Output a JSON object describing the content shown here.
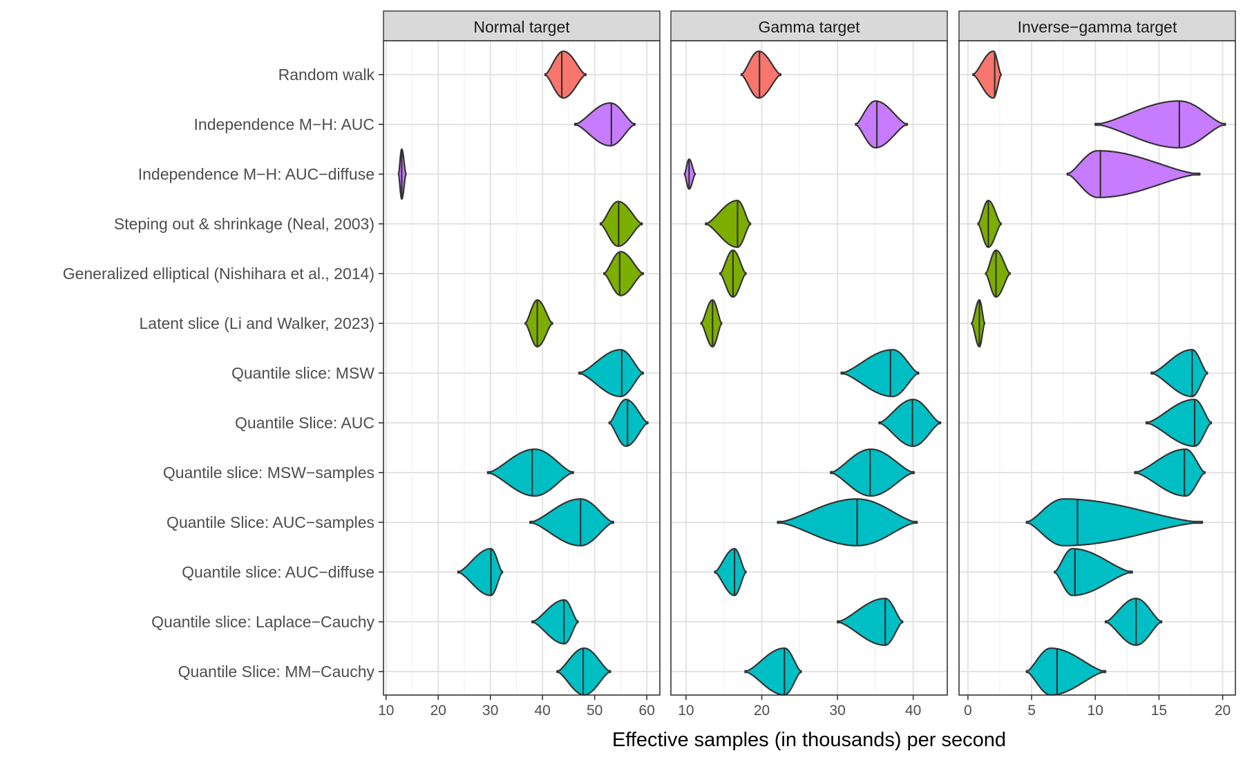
{
  "chart_data": {
    "type": "violin",
    "title": "",
    "xlabel": "Effective samples (in thousands) per second",
    "ylabel": "",
    "grid": true,
    "legend": "none",
    "categories": [
      "Random walk",
      "Independence M−H: AUC",
      "Independence M−H: AUC−diffuse",
      "Steping out & shrinkage (Neal, 2003)",
      "Generalized elliptical (Nishihara et al., 2014)",
      "Latent slice (Li and Walker, 2023)",
      "Quantile slice: MSW",
      "Quantile Slice: AUC",
      "Quantile slice: MSW−samples",
      "Quantile Slice: AUC−samples",
      "Quantile slice: AUC−diffuse",
      "Quantile slice: Laplace−Cauchy",
      "Quantile Slice: MM−Cauchy"
    ],
    "group_colors": [
      "#F8766D",
      "#C77CFF",
      "#C77CFF",
      "#7CAE00",
      "#7CAE00",
      "#7CAE00",
      "#00BFC4",
      "#00BFC4",
      "#00BFC4",
      "#00BFC4",
      "#00BFC4",
      "#00BFC4",
      "#00BFC4"
    ],
    "panels": [
      {
        "strip": "Normal target",
        "xlim": [
          9.5,
          62.5
        ],
        "xticks": [
          "10",
          "20",
          "30",
          "40",
          "50",
          "60"
        ],
        "xtick_values": [
          10,
          20,
          30,
          40,
          50,
          60
        ],
        "violins": [
          {
            "min": 40.5,
            "max": 48.3,
            "median": 43.7,
            "peak": 44,
            "w": 0.47
          },
          {
            "min": 46.2,
            "max": 57.7,
            "median": 53.2,
            "peak": 53,
            "w": 0.43
          },
          {
            "min": 12.4,
            "max": 13.8,
            "median": 13.0,
            "peak": 13,
            "w": 0.5
          },
          {
            "min": 51.1,
            "max": 59.1,
            "median": 54.6,
            "peak": 54.5,
            "w": 0.45
          },
          {
            "min": 51.8,
            "max": 59.3,
            "median": 54.8,
            "peak": 55,
            "w": 0.44
          },
          {
            "min": 36.7,
            "max": 41.9,
            "median": 39.0,
            "peak": 39,
            "w": 0.47
          },
          {
            "min": 47.0,
            "max": 59.3,
            "median": 55.2,
            "peak": 55,
            "w": 0.47
          },
          {
            "min": 52.8,
            "max": 60.2,
            "median": 56.3,
            "peak": 56,
            "w": 0.47
          },
          {
            "min": 29.5,
            "max": 45.9,
            "median": 38.0,
            "peak": 38.5,
            "w": 0.47
          },
          {
            "min": 37.6,
            "max": 53.6,
            "median": 47.3,
            "peak": 47.3,
            "w": 0.47
          },
          {
            "min": 23.8,
            "max": 32.3,
            "median": 30.1,
            "peak": 30.1,
            "w": 0.47
          },
          {
            "min": 38.0,
            "max": 46.8,
            "median": 44.1,
            "peak": 44.2,
            "w": 0.44
          },
          {
            "min": 42.8,
            "max": 53.0,
            "median": 47.8,
            "peak": 48,
            "w": 0.47
          }
        ]
      },
      {
        "strip": "Gamma target",
        "xlim": [
          8.0,
          44.5
        ],
        "xticks": [
          "10",
          "20",
          "30",
          "40"
        ],
        "xtick_values": [
          10,
          20,
          30,
          40
        ],
        "violins": [
          {
            "min": 17.3,
            "max": 22.5,
            "median": 19.7,
            "peak": 19.6,
            "w": 0.47
          },
          {
            "min": 32.4,
            "max": 39.2,
            "median": 35.2,
            "peak": 35,
            "w": 0.47
          },
          {
            "min": 9.8,
            "max": 11.2,
            "median": 10.4,
            "peak": 10.4,
            "w": 0.3
          },
          {
            "min": 12.6,
            "max": 18.5,
            "median": 16.8,
            "peak": 16.8,
            "w": 0.47
          },
          {
            "min": 14.5,
            "max": 17.9,
            "median": 16.2,
            "peak": 16.2,
            "w": 0.47
          },
          {
            "min": 12.0,
            "max": 14.7,
            "median": 13.5,
            "peak": 13.5,
            "w": 0.47
          },
          {
            "min": 30.5,
            "max": 40.7,
            "median": 37.0,
            "peak": 37.3,
            "w": 0.47
          },
          {
            "min": 35.5,
            "max": 43.6,
            "median": 39.9,
            "peak": 40,
            "w": 0.47
          },
          {
            "min": 29.1,
            "max": 40.1,
            "median": 34.3,
            "peak": 34.4,
            "w": 0.47
          },
          {
            "min": 22.1,
            "max": 40.5,
            "median": 32.6,
            "peak": 32.6,
            "w": 0.47
          },
          {
            "min": 13.8,
            "max": 17.9,
            "median": 16.4,
            "peak": 16.4,
            "w": 0.47
          },
          {
            "min": 30.0,
            "max": 38.6,
            "median": 36.3,
            "peak": 36.3,
            "w": 0.47
          },
          {
            "min": 17.8,
            "max": 25.2,
            "median": 23.0,
            "peak": 23,
            "w": 0.47
          }
        ]
      },
      {
        "strip": "Inverse−gamma target",
        "xlim": [
          -0.7,
          21.0
        ],
        "xticks": [
          "0",
          "5",
          "10",
          "15",
          "20"
        ],
        "xtick_values": [
          0,
          5,
          10,
          15,
          20
        ],
        "violins": [
          {
            "min": 0.4,
            "max": 2.6,
            "median": 2.1,
            "peak": 2,
            "w": 0.47
          },
          {
            "min": 10.0,
            "max": 20.2,
            "median": 16.6,
            "peak": 16.6,
            "w": 0.47
          },
          {
            "min": 7.8,
            "max": 18.2,
            "median": 10.4,
            "peak": 10.2,
            "w": 0.47
          },
          {
            "min": 0.8,
            "max": 2.6,
            "median": 1.6,
            "peak": 1.6,
            "w": 0.47
          },
          {
            "min": 1.4,
            "max": 3.3,
            "median": 2.2,
            "peak": 2.2,
            "w": 0.47
          },
          {
            "min": 0.3,
            "max": 1.3,
            "median": 0.9,
            "peak": 0.9,
            "w": 0.47
          },
          {
            "min": 14.4,
            "max": 18.8,
            "median": 17.6,
            "peak": 17.6,
            "w": 0.47
          },
          {
            "min": 14.0,
            "max": 19.1,
            "median": 17.8,
            "peak": 17.8,
            "w": 0.47
          },
          {
            "min": 13.1,
            "max": 18.6,
            "median": 17.0,
            "peak": 17.1,
            "w": 0.47
          },
          {
            "min": 4.6,
            "max": 18.4,
            "median": 8.6,
            "peak": 7.5,
            "w": 0.47
          },
          {
            "min": 6.8,
            "max": 12.9,
            "median": 8.4,
            "peak": 8.2,
            "w": 0.47
          },
          {
            "min": 10.8,
            "max": 15.2,
            "median": 13.2,
            "peak": 13.2,
            "w": 0.47
          },
          {
            "min": 4.6,
            "max": 10.8,
            "median": 7.0,
            "peak": 6.5,
            "w": 0.47
          }
        ]
      }
    ]
  }
}
